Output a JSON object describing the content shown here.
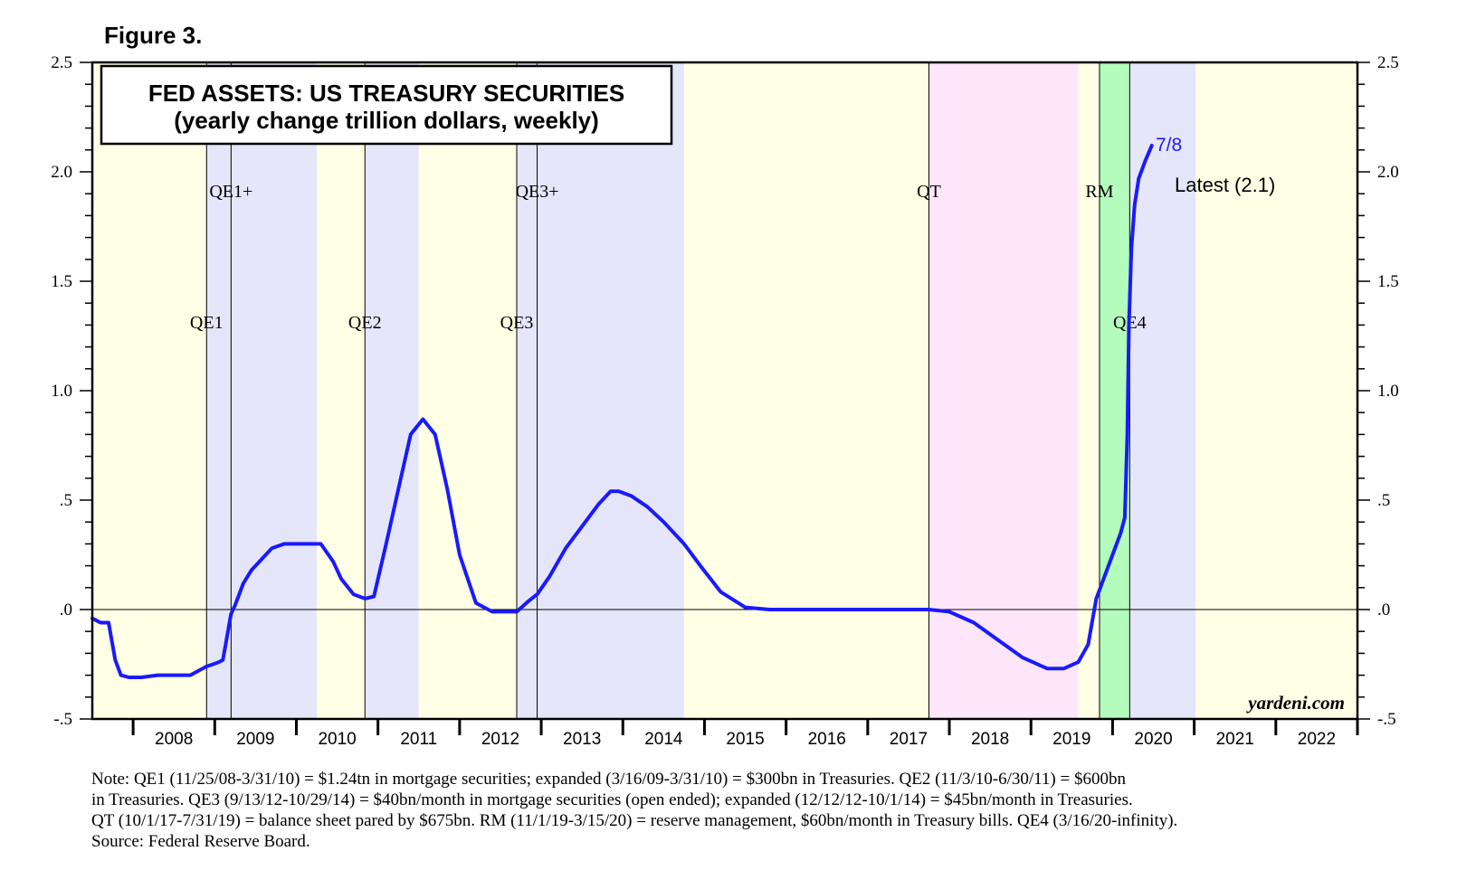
{
  "figure_label": "Figure 3.",
  "chart_data": {
    "type": "line",
    "title": "FED ASSETS: US TREASURY SECURITIES",
    "subtitle": "(yearly change trillion dollars, weekly)",
    "xlabel": "",
    "ylabel": "",
    "ylim": [
      -0.5,
      2.5
    ],
    "xlim": [
      2007.5,
      2023.0
    ],
    "y_ticks": [
      {
        "value": 2.5,
        "label": "2.5"
      },
      {
        "value": 2.0,
        "label": "2.0"
      },
      {
        "value": 1.5,
        "label": "1.5"
      },
      {
        "value": 1.0,
        "label": "1.0"
      },
      {
        "value": 0.5,
        "label": ".5"
      },
      {
        "value": 0.0,
        "label": ".0"
      },
      {
        "value": -0.5,
        "label": "-.5"
      }
    ],
    "x_ticks": [
      "2008",
      "2009",
      "2010",
      "2011",
      "2012",
      "2013",
      "2014",
      "2015",
      "2016",
      "2017",
      "2018",
      "2019",
      "2020",
      "2021",
      "2022"
    ],
    "zero_line": true,
    "grid": false,
    "colors": {
      "line": "#1a1aff",
      "neutral_band": "#ffffe6",
      "qe_band": "#e6e6fa",
      "qt_band": "#fde6fa",
      "rm_band": "#b3fcbb",
      "border": "#000000"
    },
    "bands": [
      {
        "start": 2007.5,
        "end": 2008.9,
        "kind": "neutral"
      },
      {
        "start": 2008.9,
        "end": 2010.25,
        "kind": "qe"
      },
      {
        "start": 2010.25,
        "end": 2010.84,
        "kind": "neutral"
      },
      {
        "start": 2010.84,
        "end": 2011.5,
        "kind": "qe"
      },
      {
        "start": 2011.5,
        "end": 2012.7,
        "kind": "neutral"
      },
      {
        "start": 2012.7,
        "end": 2014.75,
        "kind": "qe"
      },
      {
        "start": 2014.75,
        "end": 2017.75,
        "kind": "neutral"
      },
      {
        "start": 2017.75,
        "end": 2019.58,
        "kind": "qt"
      },
      {
        "start": 2019.58,
        "end": 2019.84,
        "kind": "neutral"
      },
      {
        "start": 2019.84,
        "end": 2020.21,
        "kind": "rm"
      },
      {
        "start": 2020.21,
        "end": 2021.02,
        "kind": "qe"
      },
      {
        "start": 2021.02,
        "end": 2023.0,
        "kind": "neutral"
      }
    ],
    "program_lines": [
      {
        "x": 2008.9,
        "label": "QE1",
        "row": "lower"
      },
      {
        "x": 2009.2,
        "label": "QE1+",
        "row": "upper"
      },
      {
        "x": 2010.84,
        "label": "QE2",
        "row": "lower"
      },
      {
        "x": 2012.7,
        "label": "QE3",
        "row": "lower"
      },
      {
        "x": 2012.95,
        "label": "QE3+",
        "row": "upper"
      },
      {
        "x": 2017.75,
        "label": "QT",
        "row": "upper"
      },
      {
        "x": 2019.84,
        "label": "RM",
        "row": "upper"
      },
      {
        "x": 2020.21,
        "label": "QE4",
        "row": "lower"
      }
    ],
    "series": [
      {
        "x": [
          2007.5,
          2007.6,
          2007.7,
          2007.78,
          2007.85,
          2007.95,
          2008.1,
          2008.3,
          2008.5,
          2008.7,
          2008.9,
          2008.98,
          2009.05,
          2009.1,
          2009.2,
          2009.25,
          2009.35,
          2009.45,
          2009.55,
          2009.7,
          2009.85,
          2009.95,
          2010.1,
          2010.3,
          2010.45,
          2010.55,
          2010.7,
          2010.84,
          2010.95,
          2011.1,
          2011.25,
          2011.4,
          2011.55,
          2011.7,
          2011.85,
          2012.0,
          2012.2,
          2012.4,
          2012.55,
          2012.7,
          2012.85,
          2012.95,
          2013.1,
          2013.3,
          2013.5,
          2013.7,
          2013.85,
          2013.95,
          2014.1,
          2014.3,
          2014.5,
          2014.75,
          2014.95,
          2015.2,
          2015.5,
          2015.8,
          2016.0,
          2016.5,
          2017.0,
          2017.5,
          2017.75,
          2018.0,
          2018.3,
          2018.6,
          2018.9,
          2019.2,
          2019.4,
          2019.58,
          2019.7,
          2019.8,
          2019.9,
          2020.0,
          2020.1,
          2020.15,
          2020.18,
          2020.2,
          2020.23,
          2020.27,
          2020.32,
          2020.4,
          2020.48
        ],
        "values": [
          -0.04,
          -0.06,
          -0.06,
          -0.23,
          -0.3,
          -0.31,
          -0.31,
          -0.3,
          -0.3,
          -0.3,
          -0.26,
          -0.25,
          -0.24,
          -0.23,
          -0.02,
          0.02,
          0.12,
          0.18,
          0.22,
          0.28,
          0.3,
          0.3,
          0.3,
          0.3,
          0.22,
          0.14,
          0.07,
          0.05,
          0.06,
          0.3,
          0.55,
          0.8,
          0.87,
          0.8,
          0.55,
          0.25,
          0.03,
          -0.01,
          -0.01,
          -0.01,
          0.04,
          0.07,
          0.15,
          0.28,
          0.38,
          0.48,
          0.54,
          0.54,
          0.52,
          0.47,
          0.4,
          0.3,
          0.2,
          0.08,
          0.01,
          0.0,
          0.0,
          0.0,
          0.0,
          0.0,
          0.0,
          -0.01,
          -0.06,
          -0.14,
          -0.22,
          -0.27,
          -0.27,
          -0.24,
          -0.16,
          0.05,
          0.15,
          0.25,
          0.35,
          0.42,
          0.8,
          1.3,
          1.65,
          1.85,
          1.97,
          2.05,
          2.12
        ]
      }
    ],
    "end_label": "7/8",
    "latest_label": "Latest (2.1)",
    "watermark": "yardeni.com"
  },
  "notes": [
    "Note: QE1 (11/25/08-3/31/10) = $1.24tn in mortgage securities; expanded (3/16/09-3/31/10) = $300bn in Treasuries. QE2 (11/3/10-6/30/11) = $600bn",
    "in Treasuries. QE3 (9/13/12-10/29/14) = $40bn/month in mortgage securities (open ended); expanded (12/12/12-10/1/14) = $45bn/month in Treasuries.",
    "QT (10/1/17-7/31/19) = balance sheet pared by $675bn. RM (11/1/19-3/15/20) = reserve management, $60bn/month in Treasury bills. QE4 (3/16/20-infinity).",
    "Source: Federal Reserve Board."
  ]
}
